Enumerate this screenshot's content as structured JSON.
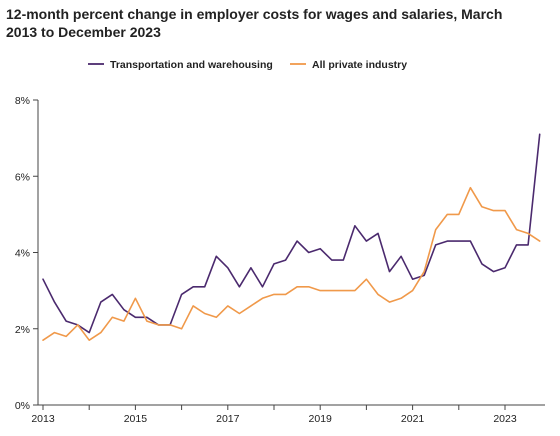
{
  "chart_data": {
    "type": "line",
    "title": "12-month percent change in employer costs for wages and salaries, March 2013 to December 2023",
    "xlabel": "",
    "ylabel": "",
    "ylim": [
      0,
      8
    ],
    "y_ticks": [
      0,
      2,
      4,
      6,
      8
    ],
    "y_tick_labels": [
      "0%",
      "2%",
      "4%",
      "6%",
      "8%"
    ],
    "x_tick_labels": [
      "2013",
      "2015",
      "2017",
      "2019",
      "2021",
      "2023"
    ],
    "grid": false,
    "legend_position": "top",
    "x": [
      "2013-Q1",
      "2013-Q2",
      "2013-Q3",
      "2013-Q4",
      "2014-Q1",
      "2014-Q2",
      "2014-Q3",
      "2014-Q4",
      "2015-Q1",
      "2015-Q2",
      "2015-Q3",
      "2015-Q4",
      "2016-Q1",
      "2016-Q2",
      "2016-Q3",
      "2016-Q4",
      "2017-Q1",
      "2017-Q2",
      "2017-Q3",
      "2017-Q4",
      "2018-Q1",
      "2018-Q2",
      "2018-Q3",
      "2018-Q4",
      "2019-Q1",
      "2019-Q2",
      "2019-Q3",
      "2019-Q4",
      "2020-Q1",
      "2020-Q2",
      "2020-Q3",
      "2020-Q4",
      "2021-Q1",
      "2021-Q2",
      "2021-Q3",
      "2021-Q4",
      "2022-Q1",
      "2022-Q2",
      "2022-Q3",
      "2022-Q4",
      "2023-Q1",
      "2023-Q2",
      "2023-Q3",
      "2023-Q4"
    ],
    "series": [
      {
        "name": "Transportation and warehousing",
        "color": "#4b2a6e",
        "values": [
          3.3,
          2.7,
          2.2,
          2.1,
          1.9,
          2.7,
          2.9,
          2.5,
          2.3,
          2.3,
          2.1,
          2.1,
          2.9,
          3.1,
          3.1,
          3.9,
          3.6,
          3.1,
          3.6,
          3.1,
          3.7,
          3.8,
          4.3,
          4.0,
          4.1,
          3.8,
          3.8,
          4.7,
          4.3,
          4.5,
          3.5,
          3.9,
          3.3,
          3.4,
          4.2,
          4.3,
          4.3,
          4.3,
          3.7,
          3.5,
          3.6,
          4.2,
          4.2,
          7.1
        ]
      },
      {
        "name": "All private industry",
        "color": "#f0994a",
        "values": [
          1.7,
          1.9,
          1.8,
          2.1,
          1.7,
          1.9,
          2.3,
          2.2,
          2.8,
          2.2,
          2.1,
          2.1,
          2.0,
          2.6,
          2.4,
          2.3,
          2.6,
          2.4,
          2.6,
          2.8,
          2.9,
          2.9,
          3.1,
          3.1,
          3.0,
          3.0,
          3.0,
          3.0,
          3.3,
          2.9,
          2.7,
          2.8,
          3.0,
          3.5,
          4.6,
          5.0,
          5.0,
          5.7,
          5.2,
          5.1,
          5.1,
          4.6,
          4.5,
          4.3
        ]
      }
    ]
  }
}
